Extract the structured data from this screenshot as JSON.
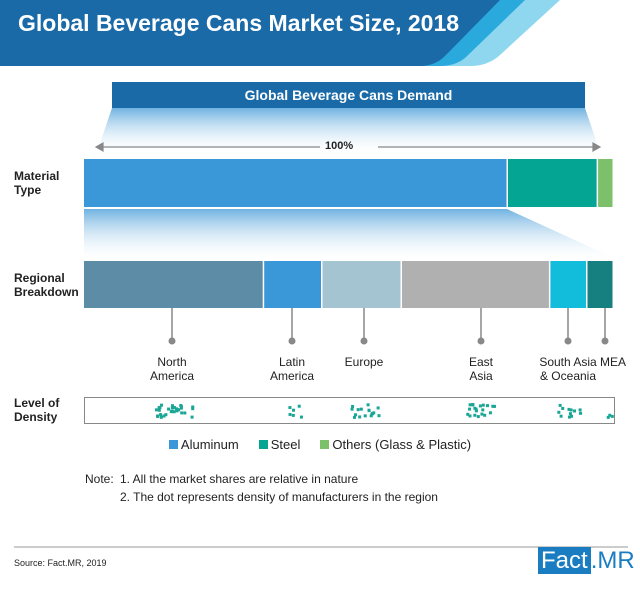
{
  "title": "Global Beverage Cans Market Size, 2018",
  "demand_label": "Global Beverage Cans Demand",
  "total_label": "100%",
  "row_labels": {
    "material": [
      "Material",
      "Type"
    ],
    "regional": [
      "Regional",
      "Breakdown"
    ],
    "density": [
      "Level of",
      "Density"
    ]
  },
  "chart_data": [
    {
      "type": "bar",
      "orientation": "horizontal-stacked",
      "name": "Material Type",
      "categories": [
        "Aluminum",
        "Steel",
        "Others (Glass & Plastic)"
      ],
      "values": [
        80,
        17,
        3
      ],
      "colors": [
        "#3a97d8",
        "#04a592",
        "#7cc06a"
      ],
      "unit": "%"
    },
    {
      "type": "bar",
      "orientation": "horizontal-stacked",
      "name": "Regional Breakdown",
      "categories": [
        "North America",
        "Latin America",
        "Europe",
        "East Asia",
        "South Asia & Oceania",
        "MEA"
      ],
      "labels": [
        [
          "North",
          "America"
        ],
        [
          "Latin",
          "America"
        ],
        [
          "Europe"
        ],
        [
          "East",
          "Asia"
        ],
        [
          "South Asia",
          "& Oceania"
        ],
        [
          "MEA"
        ]
      ],
      "values": [
        34,
        11,
        15,
        28,
        7,
        5
      ],
      "colors": [
        "#5d8da6",
        "#3a97d8",
        "#a4c4d1",
        "#b0b0b0",
        "#12bcdb",
        "#167f80"
      ],
      "unit": "%"
    },
    {
      "type": "scatter",
      "name": "Level of Density",
      "categories": [
        "North America",
        "Latin America",
        "Europe",
        "East Asia",
        "South Asia & Oceania",
        "MEA"
      ],
      "dot_counts": [
        32,
        6,
        17,
        20,
        12,
        3
      ],
      "color": "#1aa694"
    }
  ],
  "legend": [
    {
      "label": "Aluminum",
      "color": "#3a97d8"
    },
    {
      "label": "Steel",
      "color": "#04a592"
    },
    {
      "label": "Others (Glass & Plastic)",
      "color": "#7cc06a"
    }
  ],
  "notes": {
    "prefix": "Note:",
    "items": [
      "1. All the market shares are relative in nature",
      "2. The dot represents density of manufacturers in the region"
    ]
  },
  "source": "Source: Fact.MR, 2019",
  "logo": {
    "part1": "Fact",
    "part2": ".MR"
  },
  "colors": {
    "header": "#1a6aa8",
    "accent_light": "#7fd0ee"
  }
}
